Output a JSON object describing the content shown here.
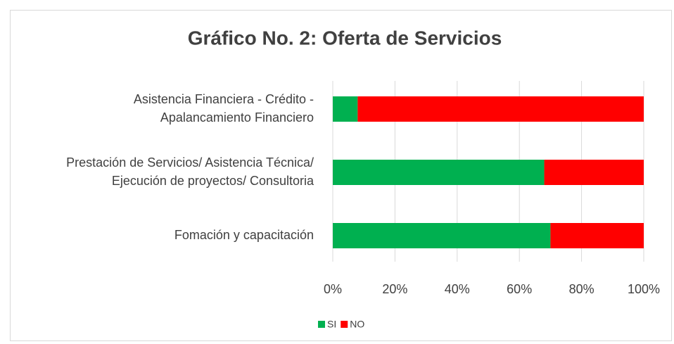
{
  "chart_data": {
    "type": "stacked-barh",
    "title": "Gráfico No. 2: Oferta de Servicios",
    "categories": [
      [
        "Asistencia Financiera - Crédito -",
        "Apalancamiento Financiero"
      ],
      [
        "Prestación de Servicios/ Asistencia Técnica/",
        "Ejecución  de proyectos/ Consultoria"
      ],
      [
        "Fomación y capacitación"
      ]
    ],
    "series": [
      {
        "name": "SI",
        "color": "#00b050",
        "values": [
          8,
          68,
          70
        ]
      },
      {
        "name": "NO",
        "color": "#ff0000",
        "values": [
          92,
          32,
          30
        ]
      }
    ],
    "xlim": [
      0,
      100
    ],
    "xticks": [
      {
        "value": 0,
        "label": "0%"
      },
      {
        "value": 20,
        "label": "20%"
      },
      {
        "value": 40,
        "label": "40%"
      },
      {
        "value": 60,
        "label": "60%"
      },
      {
        "value": 80,
        "label": "80%"
      },
      {
        "value": 100,
        "label": "100%"
      }
    ],
    "grid": true,
    "legend": "bottom"
  }
}
